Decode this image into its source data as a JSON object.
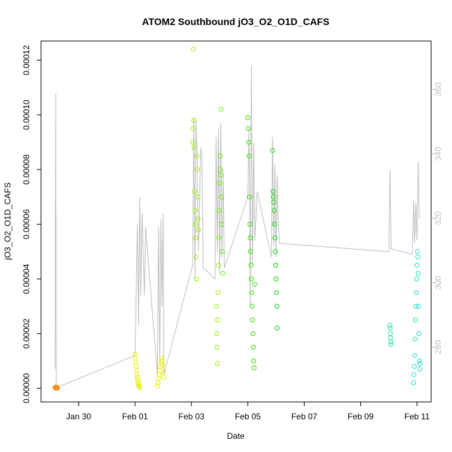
{
  "chart_data": {
    "type": "scatter",
    "title": "ATOM2 Southbound jO3_O2_O1D_CAFS",
    "xlabel": "Date",
    "ylabel": "jO3_O2_O1D_CAFS",
    "xlim": [
      "2017-01-28T16:00",
      "2017-02-11T12:00"
    ],
    "ylim": [
      -5e-06,
      0.000127
    ],
    "y2lim": [
      263,
      375
    ],
    "x_ticks": [
      {
        "date": "2017-01-30",
        "label": "Jan 30"
      },
      {
        "date": "2017-02-01",
        "label": "Feb 01"
      },
      {
        "date": "2017-02-03",
        "label": "Feb 03"
      },
      {
        "date": "2017-02-05",
        "label": "Feb 05"
      },
      {
        "date": "2017-02-07",
        "label": "Feb 07"
      },
      {
        "date": "2017-02-09",
        "label": "Feb 09"
      },
      {
        "date": "2017-02-11",
        "label": "Feb 11"
      }
    ],
    "y_ticks": [
      {
        "value": 0,
        "label": "0.00000"
      },
      {
        "value": 2e-05,
        "label": "0.00002"
      },
      {
        "value": 4e-05,
        "label": "0.00004"
      },
      {
        "value": 6e-05,
        "label": "0.00006"
      },
      {
        "value": 8e-05,
        "label": "0.00008"
      },
      {
        "value": 0.0001,
        "label": "0.00010"
      },
      {
        "value": 0.00012,
        "label": "0.00012"
      }
    ],
    "y2_ticks": [
      {
        "value": 280,
        "label": "280"
      },
      {
        "value": 300,
        "label": "300"
      },
      {
        "value": 320,
        "label": "320"
      },
      {
        "value": 340,
        "label": "340"
      },
      {
        "value": 360,
        "label": "360"
      }
    ],
    "grid": false,
    "line_series": {
      "color": "#bdbdbd",
      "points": [
        [
          "2017-01-29T04:00",
          7e-06
        ],
        [
          "2017-01-29T04:30",
          0.000108
        ],
        [
          "2017-01-29T05:00",
          2e-07
        ],
        [
          "2017-02-01T00:00",
          1.2e-05
        ],
        [
          "2017-02-01T02:00",
          6e-05
        ],
        [
          "2017-02-01T03:00",
          2.3e-05
        ],
        [
          "2017-02-01T04:00",
          7e-05
        ],
        [
          "2017-02-01T05:00",
          3.4e-05
        ],
        [
          "2017-02-01T06:00",
          6.4e-05
        ],
        [
          "2017-02-01T08:00",
          3.4e-05
        ],
        [
          "2017-02-01T09:00",
          5.9e-05
        ],
        [
          "2017-02-01T19:00",
          5e-06
        ],
        [
          "2017-02-01T20:00",
          5.9e-05
        ],
        [
          "2017-02-01T21:00",
          1e-05
        ],
        [
          "2017-02-01T22:00",
          6.2e-05
        ],
        [
          "2017-02-01T23:00",
          3e-05
        ],
        [
          "2017-02-02T00:00",
          6.4e-05
        ],
        [
          "2017-02-02T00:30",
          5e-06
        ],
        [
          "2017-02-03T01:00",
          4.5e-05
        ],
        [
          "2017-02-03T02:00",
          9.9e-05
        ],
        [
          "2017-02-03T03:00",
          4e-05
        ],
        [
          "2017-02-03T04:00",
          9.8e-05
        ],
        [
          "2017-02-03T05:00",
          8.3e-05
        ],
        [
          "2017-02-03T06:00",
          5e-05
        ],
        [
          "2017-02-03T08:00",
          8.8e-05
        ],
        [
          "2017-02-03T09:00",
          8.5e-05
        ],
        [
          "2017-02-03T10:00",
          4.4e-05
        ],
        [
          "2017-02-03T20:00",
          4e-05
        ],
        [
          "2017-02-03T21:00",
          9.2e-05
        ],
        [
          "2017-02-03T22:00",
          5e-05
        ],
        [
          "2017-02-03T23:00",
          9.5e-05
        ],
        [
          "2017-02-04T00:00",
          4.2e-05
        ],
        [
          "2017-02-04T01:00",
          9.7e-05
        ],
        [
          "2017-02-04T02:00",
          4.8e-05
        ],
        [
          "2017-02-04T03:00",
          8e-05
        ],
        [
          "2017-02-04T04:00",
          4.4e-05
        ],
        [
          "2017-02-05T00:00",
          7e-05
        ],
        [
          "2017-02-05T01:00",
          9.5e-05
        ],
        [
          "2017-02-05T02:00",
          3e-05
        ],
        [
          "2017-02-05T03:00",
          0.000118
        ],
        [
          "2017-02-05T04:00",
          4.5e-05
        ],
        [
          "2017-02-05T05:00",
          9e-05
        ],
        [
          "2017-02-05T06:00",
          5.4e-05
        ],
        [
          "2017-02-05T08:00",
          7.2e-05
        ],
        [
          "2017-02-05T20:00",
          4.8e-05
        ],
        [
          "2017-02-05T21:00",
          9.2e-05
        ],
        [
          "2017-02-05T22:00",
          5.2e-05
        ],
        [
          "2017-02-05T23:00",
          8.2e-05
        ],
        [
          "2017-02-06T00:00",
          4.8e-05
        ],
        [
          "2017-02-06T01:00",
          7.8e-05
        ],
        [
          "2017-02-06T02:00",
          6e-05
        ],
        [
          "2017-02-06T03:00",
          5.3e-05
        ],
        [
          "2017-02-10T00:00",
          5e-05
        ],
        [
          "2017-02-10T01:00",
          8e-05
        ],
        [
          "2017-02-10T02:00",
          5.1e-05
        ],
        [
          "2017-02-10T20:00",
          4.9e-05
        ],
        [
          "2017-02-10T21:00",
          6.9e-05
        ],
        [
          "2017-02-10T22:00",
          5.3e-05
        ],
        [
          "2017-02-10T23:00",
          6.8e-05
        ],
        [
          "2017-02-11T00:00",
          5.4e-05
        ],
        [
          "2017-02-11T01:00",
          8.3e-05
        ],
        [
          "2017-02-11T02:00",
          6.2e-05
        ]
      ]
    },
    "scatter_series": {
      "groups": [
        {
          "color": "#ff8800",
          "points": [
            [
              "2017-01-29T04:00",
              3e-07
            ],
            [
              "2017-01-29T04:20",
              1e-07
            ],
            [
              "2017-01-29T04:40",
              4e-07
            ],
            [
              "2017-01-29T05:00",
              2e-07
            ],
            [
              "2017-01-29T05:20",
              0.0
            ],
            [
              "2017-01-29T05:40",
              3e-07
            ],
            [
              "2017-01-29T06:00",
              1e-07
            ]
          ]
        },
        {
          "color": "#e6f000",
          "points": [
            [
              "2017-02-01T00:00",
              1.25e-05
            ],
            [
              "2017-02-01T00:20",
              1.1e-05
            ],
            [
              "2017-02-01T00:40",
              9.5e-06
            ],
            [
              "2017-02-01T01:00",
              8e-06
            ],
            [
              "2017-02-01T01:20",
              6.5e-06
            ],
            [
              "2017-02-01T01:40",
              5e-06
            ],
            [
              "2017-02-01T02:00",
              4e-06
            ],
            [
              "2017-02-01T02:20",
              3e-06
            ],
            [
              "2017-02-01T02:40",
              2e-06
            ],
            [
              "2017-02-01T03:00",
              1.5e-06
            ],
            [
              "2017-02-01T03:20",
              1e-06
            ],
            [
              "2017-02-01T03:40",
              5e-07
            ],
            [
              "2017-02-01T04:00",
              3e-07
            ],
            [
              "2017-02-01T19:00",
              8e-07
            ],
            [
              "2017-02-01T19:30",
              2e-06
            ],
            [
              "2017-02-01T20:00",
              3.5e-06
            ],
            [
              "2017-02-01T20:30",
              5e-06
            ],
            [
              "2017-02-01T21:00",
              6.5e-06
            ],
            [
              "2017-02-01T21:30",
              8e-06
            ],
            [
              "2017-02-01T22:00",
              9.5e-06
            ],
            [
              "2017-02-01T22:30",
              1.1e-05
            ],
            [
              "2017-02-01T23:00",
              1e-05
            ],
            [
              "2017-02-01T23:30",
              8.5e-06
            ],
            [
              "2017-02-02T00:00",
              6e-06
            ],
            [
              "2017-02-02T00:30",
              4e-06
            ]
          ]
        },
        {
          "color": "#99f000",
          "points": [
            [
              "2017-02-03T01:00",
              9e-05
            ],
            [
              "2017-02-03T01:20",
              9.5e-05
            ],
            [
              "2017-02-03T01:40",
              0.000124
            ],
            [
              "2017-02-03T02:00",
              9.8e-05
            ],
            [
              "2017-02-03T02:20",
              8.8e-05
            ],
            [
              "2017-02-03T02:40",
              7.2e-05
            ],
            [
              "2017-02-03T03:00",
              6.5e-05
            ],
            [
              "2017-02-03T03:20",
              6e-05
            ],
            [
              "2017-02-03T03:40",
              5.5e-05
            ],
            [
              "2017-02-03T04:00",
              4.8e-05
            ],
            [
              "2017-02-03T04:20",
              4e-05
            ],
            [
              "2017-02-03T04:40",
              8.5e-05
            ],
            [
              "2017-02-03T05:00",
              8e-05
            ],
            [
              "2017-02-03T05:20",
              7e-05
            ],
            [
              "2017-02-03T05:40",
              6.2e-05
            ],
            [
              "2017-02-03T06:00",
              5.8e-05
            ],
            [
              "2017-02-03T21:00",
              3e-05
            ],
            [
              "2017-02-03T21:20",
              2e-05
            ],
            [
              "2017-02-03T21:40",
              1.5e-05
            ],
            [
              "2017-02-03T22:00",
              9e-06
            ],
            [
              "2017-02-03T22:20",
              2.5e-05
            ],
            [
              "2017-02-03T22:40",
              3.5e-05
            ],
            [
              "2017-02-03T23:00",
              4.5e-05
            ]
          ]
        },
        {
          "color": "#66f000",
          "points": [
            [
              "2017-02-03T23:20",
              5.5e-05
            ],
            [
              "2017-02-03T23:40",
              6.5e-05
            ],
            [
              "2017-02-04T00:00",
              7.5e-05
            ],
            [
              "2017-02-04T00:20",
              8.5e-05
            ],
            [
              "2017-02-04T00:40",
              8e-05
            ],
            [
              "2017-02-04T01:00",
              7.8e-05
            ],
            [
              "2017-02-04T01:20",
              0.000102
            ],
            [
              "2017-02-04T01:40",
              7e-05
            ],
            [
              "2017-02-04T02:00",
              6e-05
            ],
            [
              "2017-02-04T02:20",
              5e-05
            ],
            [
              "2017-02-04T02:40",
              4.2e-05
            ]
          ]
        },
        {
          "color": "#33e000",
          "points": [
            [
              "2017-02-05T00:00",
              9.9e-05
            ],
            [
              "2017-02-05T00:20",
              9.5e-05
            ],
            [
              "2017-02-05T00:40",
              9e-05
            ],
            [
              "2017-02-05T01:00",
              8.5e-05
            ],
            [
              "2017-02-05T01:20",
              7e-05
            ],
            [
              "2017-02-05T01:40",
              6e-05
            ],
            [
              "2017-02-05T02:00",
              5.5e-05
            ],
            [
              "2017-02-05T02:20",
              5e-05
            ],
            [
              "2017-02-05T02:40",
              4.5e-05
            ],
            [
              "2017-02-05T03:00",
              4e-05
            ],
            [
              "2017-02-05T03:20",
              3.5e-05
            ],
            [
              "2017-02-05T03:40",
              3e-05
            ],
            [
              "2017-02-05T04:00",
              2.5e-05
            ],
            [
              "2017-02-05T04:20",
              2e-05
            ],
            [
              "2017-02-05T04:40",
              1.5e-05
            ],
            [
              "2017-02-05T05:00",
              1e-05
            ],
            [
              "2017-02-05T05:20",
              7.5e-06
            ],
            [
              "2017-02-05T05:40",
              3.8e-05
            ]
          ]
        },
        {
          "color": "#11d800",
          "points": [
            [
              "2017-02-05T21:00",
              8.7e-05
            ],
            [
              "2017-02-05T21:20",
              7.2e-05
            ],
            [
              "2017-02-05T21:40",
              7e-05
            ],
            [
              "2017-02-05T22:00",
              6.8e-05
            ],
            [
              "2017-02-05T22:20",
              6.5e-05
            ],
            [
              "2017-02-05T22:40",
              6e-05
            ],
            [
              "2017-02-05T23:00",
              5.5e-05
            ],
            [
              "2017-02-05T23:20",
              5e-05
            ],
            [
              "2017-02-05T23:40",
              4.5e-05
            ],
            [
              "2017-02-06T00:00",
              4e-05
            ],
            [
              "2017-02-06T00:20",
              3.5e-05
            ],
            [
              "2017-02-06T00:40",
              3e-05
            ],
            [
              "2017-02-06T01:00",
              2.2e-05
            ]
          ]
        },
        {
          "color": "#22e8a0",
          "points": [
            [
              "2017-02-10T01:00",
              2.3e-05
            ],
            [
              "2017-02-10T01:10",
              2.2e-05
            ],
            [
              "2017-02-10T01:20",
              2e-05
            ],
            [
              "2017-02-10T01:30",
              1.85e-05
            ],
            [
              "2017-02-10T01:40",
              1.7e-05
            ],
            [
              "2017-02-10T01:50",
              1.6e-05
            ]
          ]
        },
        {
          "color": "#22e0c8",
          "points": [
            [
              "2017-02-10T21:00",
              2e-06
            ],
            [
              "2017-02-10T21:20",
              5e-06
            ],
            [
              "2017-02-10T21:40",
              8e-06
            ],
            [
              "2017-02-10T22:00",
              1.2e-05
            ],
            [
              "2017-02-10T22:20",
              1.8e-05
            ],
            [
              "2017-02-10T22:40",
              2.5e-05
            ],
            [
              "2017-02-10T23:00",
              3e-05
            ],
            [
              "2017-02-10T23:20",
              3.5e-05
            ],
            [
              "2017-02-10T23:40",
              4e-05
            ],
            [
              "2017-02-11T00:00",
              4.5e-05
            ],
            [
              "2017-02-11T00:20",
              5e-05
            ],
            [
              "2017-02-11T00:40",
              4.8e-05
            ],
            [
              "2017-02-11T01:00",
              4.2e-05
            ],
            [
              "2017-02-11T01:20",
              3e-05
            ],
            [
              "2017-02-11T01:40",
              2e-05
            ],
            [
              "2017-02-11T02:00",
              1e-05
            ],
            [
              "2017-02-11T02:20",
              7e-06
            ],
            [
              "2017-02-11T02:40",
              9e-06
            ]
          ]
        }
      ]
    }
  }
}
